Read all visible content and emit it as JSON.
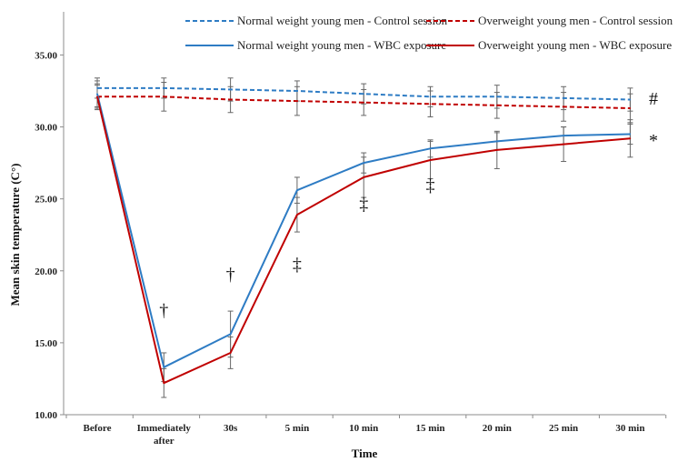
{
  "chart_data": {
    "type": "line",
    "title": "",
    "xlabel": "Time",
    "ylabel": "Mean skin temperature (C°)",
    "ylim": [
      10,
      35
    ],
    "yticks": [
      "10.00",
      "15.00",
      "20.00",
      "25.00",
      "30.00",
      "35.00"
    ],
    "categories": [
      "Before",
      [
        "Immediately",
        "after"
      ],
      "30s",
      "5 min",
      "10 min",
      "15 min",
      "20 min",
      "25 min",
      "30 min"
    ],
    "grid": false,
    "legend_position": "top",
    "series": [
      {
        "name": "Normal weight young men - Control session",
        "color": "#2E7CC4",
        "dash": true,
        "values": [
          32.7,
          32.7,
          32.6,
          32.5,
          32.3,
          32.1,
          32.1,
          32.0,
          31.9
        ],
        "errors": [
          0.7,
          0.7,
          0.8,
          0.7,
          0.7,
          0.7,
          0.8,
          0.8,
          0.8
        ]
      },
      {
        "name": "Overweight young men - Control session",
        "color": "#C00000",
        "dash": true,
        "values": [
          32.1,
          32.1,
          31.9,
          31.8,
          31.7,
          31.6,
          31.5,
          31.4,
          31.3
        ],
        "errors": [
          0.8,
          1.0,
          0.9,
          1.0,
          0.9,
          0.9,
          0.9,
          1.0,
          1.0
        ]
      },
      {
        "name": "Normal weight young men - WBC exposure",
        "color": "#2E7CC4",
        "dash": false,
        "values": [
          32.3,
          13.3,
          15.6,
          25.6,
          27.5,
          28.5,
          29.0,
          29.4,
          29.5
        ],
        "errors": [
          0.9,
          1.0,
          1.6,
          0.9,
          0.7,
          0.6,
          0.6,
          0.6,
          0.7
        ]
      },
      {
        "name": "Overweight young men - WBC exposure",
        "color": "#C00000",
        "dash": false,
        "values": [
          32.1,
          12.2,
          14.3,
          23.9,
          26.5,
          27.7,
          28.4,
          28.8,
          29.2
        ],
        "errors": [
          0.9,
          1.0,
          1.1,
          1.2,
          1.4,
          1.3,
          1.3,
          1.2,
          1.3
        ]
      }
    ],
    "annotations": [
      {
        "text": "†",
        "category_index": 1,
        "y": 17.3
      },
      {
        "text": "†",
        "category_index": 2,
        "y": 19.8
      },
      {
        "text": "‡",
        "category_index": 3,
        "y": 20.5
      },
      {
        "text": "‡",
        "category_index": 4,
        "y": 24.7
      },
      {
        "text": "‡",
        "category_index": 5,
        "y": 26.0
      },
      {
        "text": "#",
        "category_index": 8.35,
        "y": 32.0
      },
      {
        "text": "*",
        "category_index": 8.35,
        "y": 29.1
      }
    ]
  }
}
